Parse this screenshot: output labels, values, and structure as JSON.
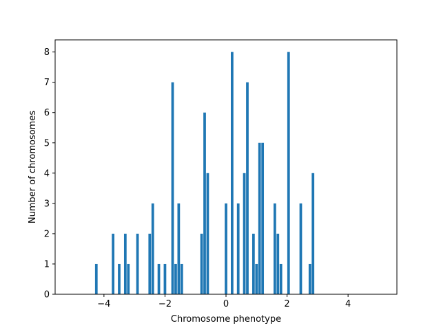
{
  "chart_data": {
    "type": "bar",
    "title": "",
    "xlabel": "Chromosome phenotype",
    "ylabel": "Number of chromosomes",
    "xlim": [
      -5.6,
      5.6
    ],
    "ylim": [
      0,
      8.4
    ],
    "xticks": [
      -4,
      -2,
      0,
      2,
      4
    ],
    "yticks": [
      0,
      1,
      2,
      3,
      4,
      5,
      6,
      7,
      8
    ],
    "bar_width": 0.085,
    "bar_color": "#1f77b4",
    "grid": false,
    "legend": "none",
    "x": [
      -4.25,
      -3.7,
      -3.5,
      -3.3,
      -3.2,
      -2.9,
      -2.5,
      -2.4,
      -2.2,
      -2.0,
      -1.75,
      -1.65,
      -1.55,
      -1.45,
      -0.8,
      -0.7,
      -0.6,
      0.0,
      0.2,
      0.4,
      0.6,
      0.7,
      0.9,
      1.0,
      1.1,
      1.2,
      1.6,
      1.7,
      1.8,
      2.05,
      2.45,
      2.75,
      2.85
    ],
    "values": [
      1,
      2,
      1,
      2,
      1,
      2,
      2,
      3,
      1,
      1,
      7,
      1,
      3,
      1,
      2,
      6,
      4,
      3,
      8,
      3,
      4,
      7,
      2,
      1,
      5,
      5,
      3,
      2,
      1,
      8,
      3,
      1,
      4
    ]
  }
}
